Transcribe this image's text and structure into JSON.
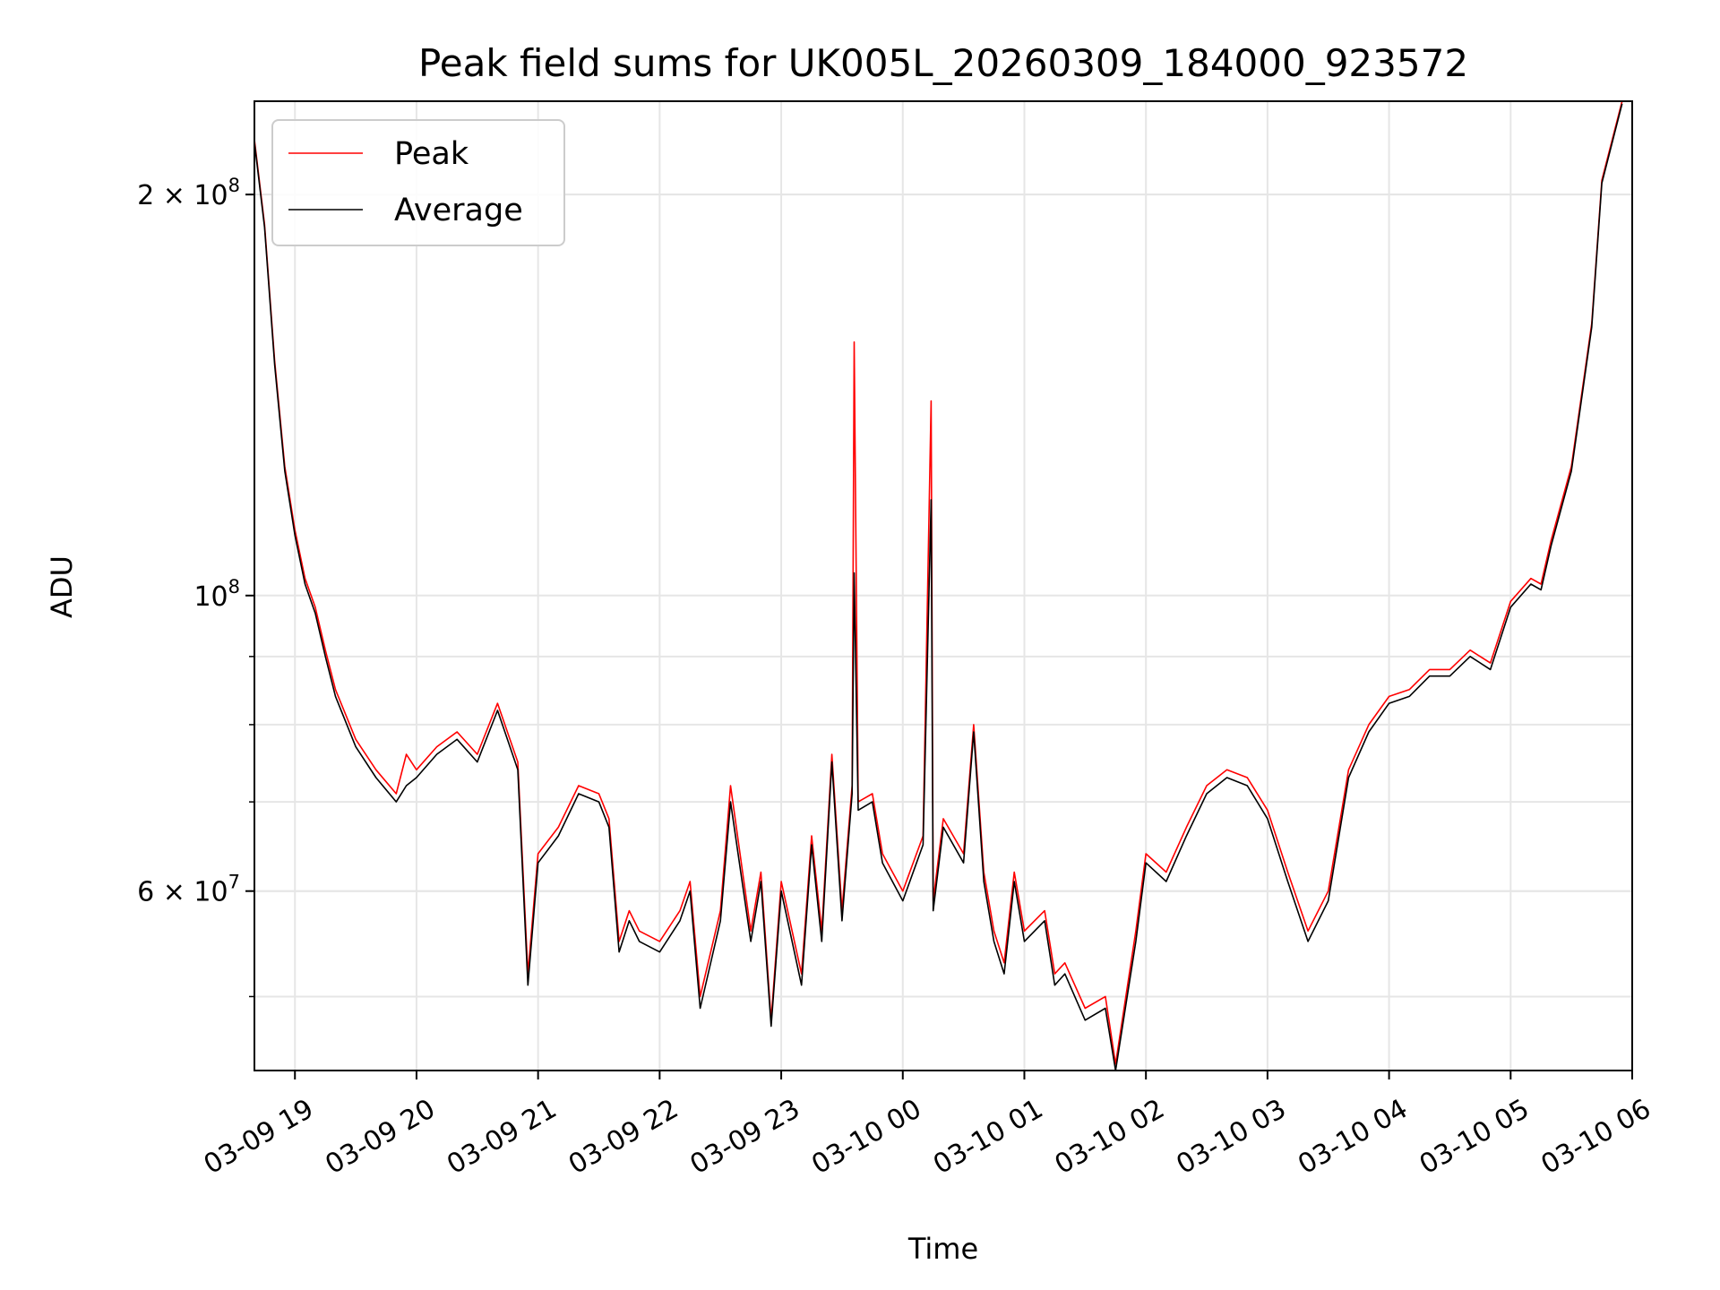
{
  "chart_data": {
    "type": "line",
    "title": "Peak field sums for UK005L_20260309_184000_923572",
    "xlabel": "Time",
    "ylabel": "ADU",
    "yscale": "log",
    "ylim": [
      44000000,
      235000000
    ],
    "xlim": [
      "2026-03-09 18:40",
      "2026-03-10 06:00"
    ],
    "grid": true,
    "legend_position": "top-left",
    "x_ticks": [
      "03-09 19",
      "03-09 20",
      "03-09 21",
      "03-09 22",
      "03-09 23",
      "03-10 00",
      "03-10 01",
      "03-10 02",
      "03-10 03",
      "03-10 04",
      "03-10 05",
      "03-10 06"
    ],
    "y_ticks": [
      {
        "value": 60000000,
        "label": "6 × 10^7",
        "mant": "6",
        "exp": "7"
      },
      {
        "value": 100000000,
        "label": "10^8",
        "mant": "",
        "exp": "8"
      },
      {
        "value": 200000000,
        "label": "2 × 10^8",
        "mant": "2",
        "exp": "8"
      }
    ],
    "x_format": "MM-DD HH:MM",
    "series": [
      {
        "name": "Peak",
        "color": "#ff0000",
        "points": [
          [
            "03-09 18:40",
            220000000
          ],
          [
            "03-09 18:45",
            190000000
          ],
          [
            "03-09 18:50",
            150000000
          ],
          [
            "03-09 18:55",
            125000000
          ],
          [
            "03-09 19:00",
            112000000
          ],
          [
            "03-09 19:05",
            103000000
          ],
          [
            "03-09 19:10",
            98000000
          ],
          [
            "03-09 19:15",
            91000000
          ],
          [
            "03-09 19:20",
            85000000
          ],
          [
            "03-09 19:30",
            78000000
          ],
          [
            "03-09 19:40",
            74000000
          ],
          [
            "03-09 19:50",
            71000000
          ],
          [
            "03-09 19:55",
            76000000
          ],
          [
            "03-09 20:00",
            74000000
          ],
          [
            "03-09 20:10",
            77000000
          ],
          [
            "03-09 20:20",
            79000000
          ],
          [
            "03-09 20:30",
            76000000
          ],
          [
            "03-09 20:40",
            83000000
          ],
          [
            "03-09 20:50",
            75000000
          ],
          [
            "03-09 20:55",
            52000000
          ],
          [
            "03-09 21:00",
            64000000
          ],
          [
            "03-09 21:10",
            67000000
          ],
          [
            "03-09 21:20",
            72000000
          ],
          [
            "03-09 21:30",
            71000000
          ],
          [
            "03-09 21:35",
            68000000
          ],
          [
            "03-09 21:40",
            55000000
          ],
          [
            "03-09 21:45",
            58000000
          ],
          [
            "03-09 21:50",
            56000000
          ],
          [
            "03-09 22:00",
            55000000
          ],
          [
            "03-09 22:10",
            58000000
          ],
          [
            "03-09 22:15",
            61000000
          ],
          [
            "03-09 22:20",
            50000000
          ],
          [
            "03-09 22:30",
            58000000
          ],
          [
            "03-09 22:35",
            72000000
          ],
          [
            "03-09 22:45",
            56000000
          ],
          [
            "03-09 22:50",
            62000000
          ],
          [
            "03-09 22:55",
            48000000
          ],
          [
            "03-09 23:00",
            61000000
          ],
          [
            "03-09 23:10",
            52000000
          ],
          [
            "03-09 23:15",
            66000000
          ],
          [
            "03-09 23:20",
            56000000
          ],
          [
            "03-09 23:25",
            76000000
          ],
          [
            "03-09 23:30",
            58000000
          ],
          [
            "03-09 23:35",
            72000000
          ],
          [
            "03-09 23:36",
            155000000
          ],
          [
            "03-09 23:38",
            70000000
          ],
          [
            "03-09 23:45",
            71000000
          ],
          [
            "03-09 23:50",
            64000000
          ],
          [
            "03-10 00:00",
            60000000
          ],
          [
            "03-10 00:10",
            66000000
          ],
          [
            "03-10 00:14",
            140000000
          ],
          [
            "03-10 00:15",
            59000000
          ],
          [
            "03-10 00:20",
            68000000
          ],
          [
            "03-10 00:30",
            64000000
          ],
          [
            "03-10 00:35",
            80000000
          ],
          [
            "03-10 00:40",
            62000000
          ],
          [
            "03-10 00:45",
            56000000
          ],
          [
            "03-10 00:50",
            53000000
          ],
          [
            "03-10 00:55",
            62000000
          ],
          [
            "03-10 01:00",
            56000000
          ],
          [
            "03-10 01:10",
            58000000
          ],
          [
            "03-10 01:15",
            52000000
          ],
          [
            "03-10 01:20",
            53000000
          ],
          [
            "03-10 01:30",
            49000000
          ],
          [
            "03-10 01:40",
            50000000
          ],
          [
            "03-10 01:45",
            44500000
          ],
          [
            "03-10 01:55",
            56000000
          ],
          [
            "03-10 02:00",
            64000000
          ],
          [
            "03-10 02:10",
            62000000
          ],
          [
            "03-10 02:20",
            67000000
          ],
          [
            "03-10 02:30",
            72000000
          ],
          [
            "03-10 02:40",
            74000000
          ],
          [
            "03-10 02:50",
            73000000
          ],
          [
            "03-10 03:00",
            69000000
          ],
          [
            "03-10 03:10",
            62000000
          ],
          [
            "03-10 03:20",
            56000000
          ],
          [
            "03-10 03:30",
            60000000
          ],
          [
            "03-10 03:40",
            74000000
          ],
          [
            "03-10 03:50",
            80000000
          ],
          [
            "03-10 04:00",
            84000000
          ],
          [
            "03-10 04:10",
            85000000
          ],
          [
            "03-10 04:20",
            88000000
          ],
          [
            "03-10 04:30",
            88000000
          ],
          [
            "03-10 04:40",
            91000000
          ],
          [
            "03-10 04:50",
            89000000
          ],
          [
            "03-10 05:00",
            99000000
          ],
          [
            "03-10 05:10",
            103000000
          ],
          [
            "03-10 05:15",
            102000000
          ],
          [
            "03-10 05:20",
            110000000
          ],
          [
            "03-10 05:30",
            125000000
          ],
          [
            "03-10 05:40",
            160000000
          ],
          [
            "03-10 05:45",
            205000000
          ],
          [
            "03-10 05:55",
            235000000
          ]
        ]
      },
      {
        "name": "Average",
        "color": "#000000",
        "points": [
          [
            "03-09 18:40",
            219000000
          ],
          [
            "03-09 18:45",
            189000000
          ],
          [
            "03-09 18:50",
            149000000
          ],
          [
            "03-09 18:55",
            124000000
          ],
          [
            "03-09 19:00",
            111000000
          ],
          [
            "03-09 19:05",
            102000000
          ],
          [
            "03-09 19:10",
            97000000
          ],
          [
            "03-09 19:15",
            90000000
          ],
          [
            "03-09 19:20",
            84000000
          ],
          [
            "03-09 19:30",
            77000000
          ],
          [
            "03-09 19:40",
            73000000
          ],
          [
            "03-09 19:50",
            70000000
          ],
          [
            "03-09 19:55",
            72000000
          ],
          [
            "03-09 20:00",
            73000000
          ],
          [
            "03-09 20:10",
            76000000
          ],
          [
            "03-09 20:20",
            78000000
          ],
          [
            "03-09 20:30",
            75000000
          ],
          [
            "03-09 20:40",
            82000000
          ],
          [
            "03-09 20:50",
            74000000
          ],
          [
            "03-09 20:55",
            51000000
          ],
          [
            "03-09 21:00",
            63000000
          ],
          [
            "03-09 21:10",
            66000000
          ],
          [
            "03-09 21:20",
            71000000
          ],
          [
            "03-09 21:30",
            70000000
          ],
          [
            "03-09 21:35",
            67000000
          ],
          [
            "03-09 21:40",
            54000000
          ],
          [
            "03-09 21:45",
            57000000
          ],
          [
            "03-09 21:50",
            55000000
          ],
          [
            "03-09 22:00",
            54000000
          ],
          [
            "03-09 22:10",
            57000000
          ],
          [
            "03-09 22:15",
            60000000
          ],
          [
            "03-09 22:20",
            49000000
          ],
          [
            "03-09 22:30",
            57000000
          ],
          [
            "03-09 22:35",
            70000000
          ],
          [
            "03-09 22:45",
            55000000
          ],
          [
            "03-09 22:50",
            61000000
          ],
          [
            "03-09 22:55",
            47500000
          ],
          [
            "03-09 23:00",
            60000000
          ],
          [
            "03-09 23:10",
            51000000
          ],
          [
            "03-09 23:15",
            65000000
          ],
          [
            "03-09 23:20",
            55000000
          ],
          [
            "03-09 23:25",
            75000000
          ],
          [
            "03-09 23:30",
            57000000
          ],
          [
            "03-09 23:35",
            71000000
          ],
          [
            "03-09 23:36",
            104000000
          ],
          [
            "03-09 23:38",
            69000000
          ],
          [
            "03-09 23:45",
            70000000
          ],
          [
            "03-09 23:50",
            63000000
          ],
          [
            "03-10 00:00",
            59000000
          ],
          [
            "03-10 00:10",
            65000000
          ],
          [
            "03-10 00:14",
            118000000
          ],
          [
            "03-10 00:15",
            58000000
          ],
          [
            "03-10 00:20",
            67000000
          ],
          [
            "03-10 00:30",
            63000000
          ],
          [
            "03-10 00:35",
            79000000
          ],
          [
            "03-10 00:40",
            61000000
          ],
          [
            "03-10 00:45",
            55000000
          ],
          [
            "03-10 00:50",
            52000000
          ],
          [
            "03-10 00:55",
            61000000
          ],
          [
            "03-10 01:00",
            55000000
          ],
          [
            "03-10 01:10",
            57000000
          ],
          [
            "03-10 01:15",
            51000000
          ],
          [
            "03-10 01:20",
            52000000
          ],
          [
            "03-10 01:30",
            48000000
          ],
          [
            "03-10 01:40",
            49000000
          ],
          [
            "03-10 01:45",
            44000000
          ],
          [
            "03-10 01:55",
            55000000
          ],
          [
            "03-10 02:00",
            63000000
          ],
          [
            "03-10 02:10",
            61000000
          ],
          [
            "03-10 02:20",
            66000000
          ],
          [
            "03-10 02:30",
            71000000
          ],
          [
            "03-10 02:40",
            73000000
          ],
          [
            "03-10 02:50",
            72000000
          ],
          [
            "03-10 03:00",
            68000000
          ],
          [
            "03-10 03:10",
            61000000
          ],
          [
            "03-10 03:20",
            55000000
          ],
          [
            "03-10 03:30",
            59000000
          ],
          [
            "03-10 03:40",
            73000000
          ],
          [
            "03-10 03:50",
            79000000
          ],
          [
            "03-10 04:00",
            83000000
          ],
          [
            "03-10 04:10",
            84000000
          ],
          [
            "03-10 04:20",
            87000000
          ],
          [
            "03-10 04:30",
            87000000
          ],
          [
            "03-10 04:40",
            90000000
          ],
          [
            "03-10 04:50",
            88000000
          ],
          [
            "03-10 05:00",
            98000000
          ],
          [
            "03-10 05:10",
            102000000
          ],
          [
            "03-10 05:15",
            101000000
          ],
          [
            "03-10 05:20",
            109000000
          ],
          [
            "03-10 05:30",
            124000000
          ],
          [
            "03-10 05:40",
            159000000
          ],
          [
            "03-10 05:45",
            204000000
          ],
          [
            "03-10 05:55",
            234000000
          ]
        ]
      }
    ]
  }
}
